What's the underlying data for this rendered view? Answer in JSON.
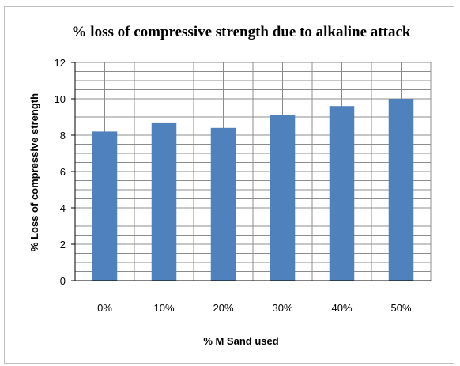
{
  "chart_data": {
    "type": "bar",
    "title": "% loss of compressive strength due to alkaline attack",
    "xlabel": "% M Sand used",
    "ylabel": "% Loss of compressive strength",
    "categories": [
      "0%",
      "10%",
      "20%",
      "30%",
      "40%",
      "50%"
    ],
    "values": [
      8.2,
      8.7,
      8.4,
      9.1,
      9.6,
      10.0
    ],
    "ylim": [
      0,
      12
    ],
    "y_ticks": [
      0,
      2,
      4,
      6,
      8,
      10,
      12
    ],
    "grid": "major and minor horizontal + vertical",
    "legend": "none",
    "bar_color": "#4f81bd",
    "grid_color": "#8c8c8c"
  }
}
